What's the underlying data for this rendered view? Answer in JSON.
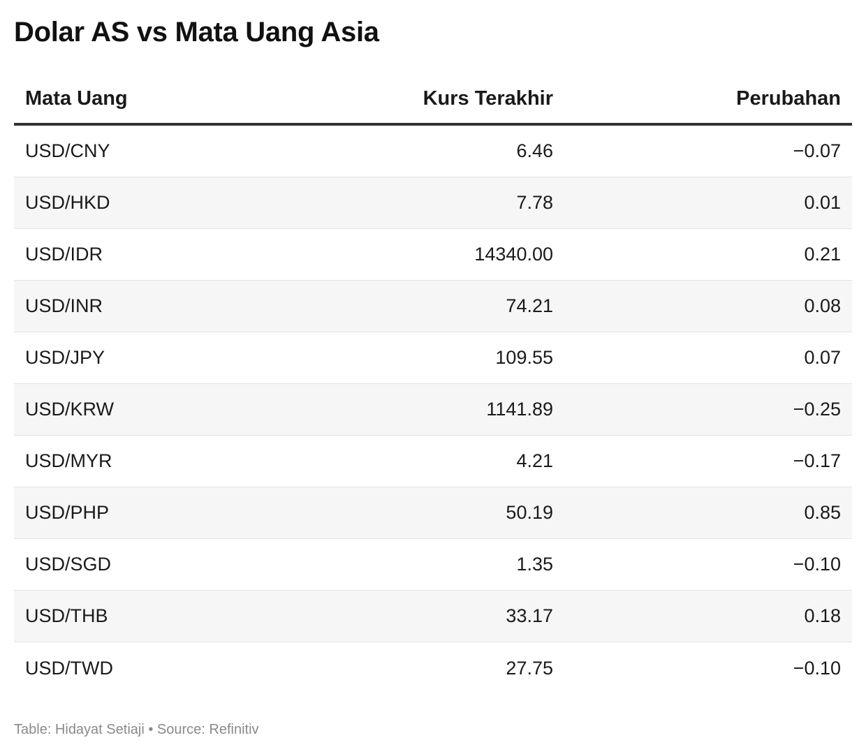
{
  "title": "Dolar AS vs Mata Uang Asia",
  "footer": {
    "credit": "Table: Hidayat Setiaji",
    "separator": "•",
    "source": "Source: Refinitiv"
  },
  "chart_data": {
    "type": "table",
    "title": "Dolar AS vs Mata Uang Asia",
    "columns": [
      "Mata Uang",
      "Kurs Terakhir",
      "Perubahan"
    ],
    "rows": [
      {
        "pair": "USD/CNY",
        "rate": "6.46",
        "change": "−0.07"
      },
      {
        "pair": "USD/HKD",
        "rate": "7.78",
        "change": "0.01"
      },
      {
        "pair": "USD/IDR",
        "rate": "14340.00",
        "change": "0.21"
      },
      {
        "pair": "USD/INR",
        "rate": "74.21",
        "change": "0.08"
      },
      {
        "pair": "USD/JPY",
        "rate": "109.55",
        "change": "0.07"
      },
      {
        "pair": "USD/KRW",
        "rate": "1141.89",
        "change": "−0.25"
      },
      {
        "pair": "USD/MYR",
        "rate": "4.21",
        "change": "−0.17"
      },
      {
        "pair": "USD/PHP",
        "rate": "50.19",
        "change": "0.85"
      },
      {
        "pair": "USD/SGD",
        "rate": "1.35",
        "change": "−0.10"
      },
      {
        "pair": "USD/THB",
        "rate": "33.17",
        "change": "0.18"
      },
      {
        "pair": "USD/TWD",
        "rate": "27.75",
        "change": "−0.10"
      }
    ]
  }
}
